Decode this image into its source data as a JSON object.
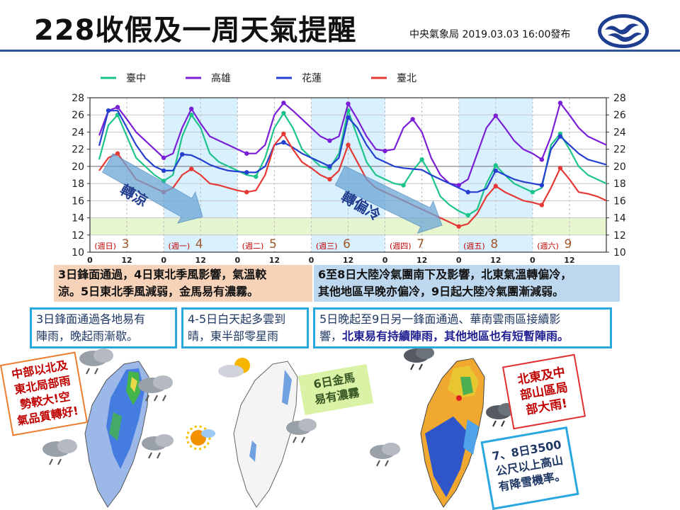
{
  "header": {
    "title": "228收假及一周天氣提醒",
    "issuer": "中央氣象局 2019.03.03 16:00發布"
  },
  "colors": {
    "taichung": "#1dc48a",
    "kaohsiung": "#7a1fd6",
    "hualien": "#2540d0",
    "taipei": "#e53935",
    "band_light": "#d9f0ff",
    "band_green": "#e4f5c8",
    "arrow": "#6ca6d6"
  },
  "chart_data": {
    "type": "line",
    "legend": [
      "臺中",
      "高雄",
      "花蓮",
      "臺北"
    ],
    "legend_position": "top",
    "ylim": [
      10,
      28
    ],
    "yticks": [
      10,
      12,
      14,
      16,
      18,
      20,
      22,
      24,
      26,
      28
    ],
    "x_tick_labels": [
      "0",
      "12",
      "0",
      "12",
      "0",
      "12",
      "0",
      "12",
      "0",
      "12",
      "0",
      "12",
      "0",
      "12"
    ],
    "day_labels": [
      {
        "date": "3",
        "weekday": "(週日)"
      },
      {
        "date": "4",
        "weekday": "(週一)"
      },
      {
        "date": "5",
        "weekday": "(週二)"
      },
      {
        "date": "6",
        "weekday": "(週三)"
      },
      {
        "date": "7",
        "weekday": "(週四)"
      },
      {
        "date": "8",
        "weekday": "(週五)"
      },
      {
        "date": "9",
        "weekday": "(週六)"
      }
    ],
    "annotations": [
      "轉涼",
      "轉偏冷"
    ],
    "grid": true,
    "series": [
      {
        "name": "臺中",
        "x": [
          3,
          6,
          9,
          12,
          15,
          18,
          21,
          24,
          27,
          30,
          33,
          36,
          39,
          42,
          45,
          48,
          51,
          54,
          57,
          60,
          63,
          66,
          69,
          72,
          75,
          78,
          81,
          84,
          87,
          90,
          93,
          96,
          99,
          102,
          105,
          108,
          111,
          114,
          117,
          120,
          123,
          126,
          129,
          132,
          135,
          138,
          141,
          144,
          147,
          150,
          153,
          156,
          159,
          162,
          165,
          168
        ],
        "values": [
          20.8,
          24.8,
          26.0,
          23.5,
          21.0,
          20.0,
          19.0,
          18.3,
          19.0,
          23.5,
          26.0,
          24.5,
          21.5,
          20.5,
          20.0,
          19.5,
          19.0,
          18.8,
          21.0,
          24.5,
          26.2,
          24.5,
          22.0,
          21.0,
          20.0,
          19.8,
          21.5,
          26.5,
          23.5,
          20.5,
          19.0,
          18.5,
          18.0,
          17.8,
          19.5,
          20.8,
          19.0,
          16.5,
          15.5,
          14.8,
          14.3,
          15.0,
          18.0,
          20.1,
          19.0,
          18.0,
          17.5,
          17.0,
          17.5,
          22.5,
          23.8,
          22.0,
          20.0,
          19.0,
          18.5,
          18.0
        ]
      },
      {
        "name": "高雄",
        "x": [
          3,
          6,
          9,
          12,
          15,
          18,
          21,
          24,
          27,
          30,
          33,
          36,
          39,
          42,
          45,
          48,
          51,
          54,
          57,
          60,
          63,
          66,
          69,
          72,
          75,
          78,
          81,
          84,
          87,
          90,
          93,
          96,
          99,
          102,
          105,
          108,
          111,
          114,
          117,
          120,
          123,
          126,
          129,
          132,
          135,
          138,
          141,
          144,
          147,
          150,
          153,
          156,
          159,
          162,
          165,
          168
        ],
        "values": [
          23.6,
          26.5,
          26.9,
          25.5,
          24.0,
          23.0,
          22.0,
          21.0,
          21.5,
          24.5,
          26.7,
          25.0,
          23.5,
          23.0,
          22.5,
          22.0,
          21.5,
          21.5,
          22.5,
          26.0,
          27.4,
          26.5,
          25.5,
          24.5,
          23.5,
          23.0,
          23.5,
          27.3,
          25.5,
          23.5,
          22.0,
          21.8,
          22.0,
          24.5,
          25.5,
          24.0,
          21.0,
          19.0,
          18.0,
          17.8,
          18.5,
          21.5,
          24.5,
          25.9,
          24.5,
          23.0,
          22.0,
          21.5,
          20.8,
          23.5,
          27.4,
          26.0,
          24.5,
          23.5,
          23.0,
          22.5
        ]
      },
      {
        "name": "花蓮",
        "x": [
          3,
          6,
          9,
          12,
          15,
          18,
          21,
          24,
          27,
          30,
          33,
          36,
          39,
          42,
          45,
          48,
          51,
          54,
          57,
          60,
          63,
          66,
          69,
          72,
          75,
          78,
          81,
          84,
          87,
          90,
          93,
          96,
          99,
          102,
          105,
          108,
          111,
          114,
          117,
          120,
          123,
          126,
          129,
          132,
          135,
          138,
          141,
          144,
          147,
          150,
          153,
          156,
          159,
          162,
          165,
          168
        ],
        "values": [
          22.4,
          26.5,
          26.5,
          24.5,
          22.5,
          21.0,
          20.0,
          19.5,
          19.5,
          21.4,
          21.3,
          20.8,
          20.2,
          19.8,
          19.5,
          19.4,
          19.3,
          19.3,
          20.0,
          22.5,
          22.8,
          22.2,
          21.5,
          21.0,
          20.5,
          20.0,
          21.0,
          25.7,
          24.5,
          22.5,
          21.0,
          20.5,
          20.0,
          19.8,
          19.7,
          19.6,
          19.0,
          18.5,
          18.0,
          17.5,
          17.0,
          17.0,
          17.4,
          19.5,
          19.0,
          18.5,
          18.2,
          18.0,
          17.8,
          22.0,
          23.5,
          22.5,
          21.5,
          20.8,
          20.5,
          20.2
        ]
      },
      {
        "name": "臺北",
        "x": [
          3,
          6,
          9,
          12,
          15,
          18,
          21,
          24,
          27,
          30,
          33,
          36,
          39,
          42,
          45,
          48,
          51,
          54,
          57,
          60,
          63,
          66,
          69,
          72,
          75,
          78,
          81,
          84,
          87,
          90,
          93,
          96,
          99,
          102,
          105,
          108,
          111,
          114,
          117,
          120,
          123,
          126,
          129,
          132,
          135,
          138,
          141,
          144,
          147,
          150,
          153,
          156,
          159,
          162,
          165,
          168
        ],
        "values": [
          19.5,
          21.0,
          21.5,
          20.0,
          18.5,
          18.0,
          17.5,
          17.0,
          17.5,
          19.0,
          19.7,
          19.0,
          18.0,
          17.8,
          17.5,
          17.2,
          17.0,
          17.2,
          19.0,
          22.5,
          23.8,
          22.0,
          20.5,
          19.8,
          19.0,
          18.5,
          19.5,
          22.5,
          20.5,
          18.5,
          17.5,
          17.0,
          16.5,
          16.0,
          15.5,
          15.0,
          14.5,
          14.0,
          13.5,
          13.0,
          13.3,
          14.5,
          16.5,
          17.7,
          17.0,
          16.5,
          16.0,
          15.8,
          15.5,
          17.5,
          19.8,
          18.5,
          17.0,
          16.8,
          16.5,
          16.0
        ]
      }
    ]
  },
  "summaries": {
    "box1": [
      "3日鋒面通過，4日東北季風影響，氣溫較",
      "涼。5日東北季風減弱，金馬易有濃霧。"
    ],
    "box2": [
      "6至8日大陸冷氣團南下及影響，北東氣溫轉偏冷，",
      "其他地區早晚亦偏冷，9日起大陸冷氣團漸減弱。"
    ],
    "box3": [
      "3日鋒面通過各地易有",
      "陣雨，晚起雨漸歇。"
    ],
    "box4": [
      "4-5日白天起多雲到",
      "晴，東半部零星雨"
    ],
    "box5_line1": "5日晚起至9日另一鋒面通過、華南雲雨區接續影",
    "box5_line2_a": "響，",
    "box5_line2_b": "北東易有持續陣雨，其他地區也有短暫陣雨。"
  },
  "notes": {
    "north_central": [
      "中部以北及",
      "東北局部雨",
      "勢較大!空",
      "氣品質轉好!"
    ],
    "kinmen_fog": [
      "6日金馬",
      "易有濃霧"
    ],
    "northeast_rain": [
      "北東及中",
      "部山區局",
      "部大雨!"
    ],
    "snow": [
      "7、8日3500",
      "公尺以上高山",
      "有降雪機率。"
    ]
  }
}
